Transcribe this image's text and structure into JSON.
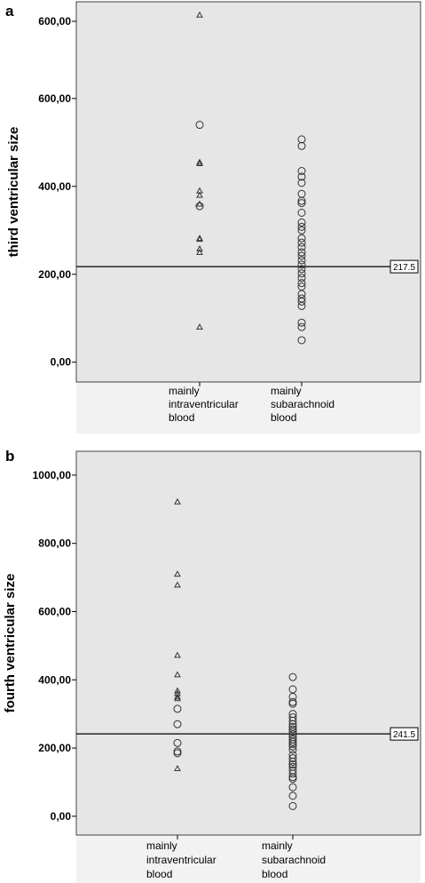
{
  "chart_data": [
    {
      "panel": "a",
      "type": "scatter",
      "ylabel": "third ventricular size",
      "yticks": [
        0,
        200,
        400,
        600
      ],
      "ytick_labels": [
        "0,00",
        "200,00",
        "400,00",
        "600,00"
      ],
      "top_tick_label": "600,00",
      "ylim": [
        -45,
        820
      ],
      "categories": [
        "mainly intraventricular blood",
        "mainly subarachnoid blood"
      ],
      "category_labels": [
        [
          "mainly",
          "intraventricular",
          "blood"
        ],
        [
          "mainly",
          "subarachnoid",
          "blood"
        ]
      ],
      "reference_line": {
        "value": 217.5,
        "label": "217.5"
      },
      "series": [
        {
          "category": 0,
          "marker": "triangle",
          "values": [
            790,
            455,
            452,
            390,
            380,
            360,
            282,
            280,
            258,
            250,
            80
          ]
        },
        {
          "category": 0,
          "marker": "circle",
          "values": [
            540,
            355
          ]
        },
        {
          "category": 1,
          "marker": "circle",
          "values": [
            507,
            492,
            435,
            422,
            408,
            383,
            367,
            362,
            340,
            318,
            308,
            300,
            282,
            272,
            262,
            250,
            242,
            232,
            222,
            212,
            202,
            192,
            180,
            172,
            155,
            145,
            138,
            128,
            90,
            80,
            50
          ]
        }
      ]
    },
    {
      "panel": "b",
      "type": "scatter",
      "ylabel": "fourth ventricular size",
      "yticks": [
        0,
        200,
        400,
        600,
        800,
        1000
      ],
      "ytick_labels": [
        "0,00",
        "200,00",
        "400,00",
        "600,00",
        "800,00",
        "1000,00"
      ],
      "ylim": [
        -55,
        1070
      ],
      "categories": [
        "mainly intraventricular blood",
        "mainly subarachnoid blood"
      ],
      "category_labels": [
        [
          "mainly",
          "intraventricular",
          "blood"
        ],
        [
          "mainly",
          "subarachnoid",
          "blood"
        ]
      ],
      "reference_line": {
        "value": 241.5,
        "label": "241.5"
      },
      "series": [
        {
          "category": 0,
          "marker": "triangle",
          "values": [
            922,
            710,
            678,
            472,
            415,
            368,
            360,
            350,
            345,
            140
          ]
        },
        {
          "category": 0,
          "marker": "circle",
          "values": [
            315,
            270,
            215,
            190,
            185
          ]
        },
        {
          "category": 1,
          "marker": "circle",
          "values": [
            408,
            372,
            350,
            335,
            330,
            300,
            290,
            280,
            270,
            262,
            255,
            248,
            240,
            232,
            225,
            218,
            212,
            205,
            195,
            180,
            170,
            160,
            152,
            145,
            135,
            125,
            115,
            110,
            85,
            60,
            30
          ]
        }
      ]
    }
  ]
}
